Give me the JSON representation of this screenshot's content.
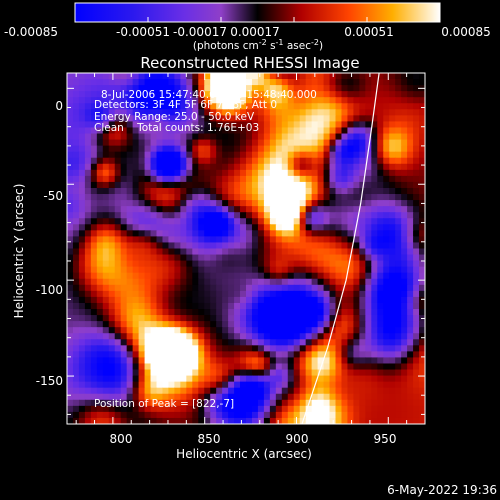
{
  "chart_data": {
    "type": "heatmap",
    "title": "Reconstructed RHESSI Image",
    "xlabel": "Heliocentric X (arcsec)",
    "ylabel": "Heliocentric Y (arcsec)",
    "xlim": [
      775,
      970
    ],
    "ylim": [
      -175,
      8
    ],
    "x_ticks": [
      800,
      850,
      900,
      950
    ],
    "y_ticks": [
      0,
      -50,
      -100,
      -150
    ],
    "colorbar": {
      "ticks": [
        "-0.00085",
        "-0.00051",
        "-0.00017",
        "0.00017",
        "0.00051",
        "0.00085"
      ],
      "label_main": "(photons cm",
      "label_exp1": "-2",
      "label_mid1": " s",
      "label_exp2": "-1",
      "label_mid2": " asec",
      "label_exp3": "-2",
      "label_end": ")",
      "range": [
        -0.00085,
        0.00085
      ]
    },
    "annotations": {
      "time": "8-Jul-2006 15:47:40.000 to 15:48:40.000",
      "detectors": "Detectors: 3F 4F 5F 6F 7F 8F, Att 0",
      "energy": "Energy Range: 25.0 - 50.0 keV",
      "clean": "Clean    Total counts: 1.76E+03",
      "peak": "Position of Peak = [822,-7]"
    },
    "limb_points": [
      [
        945,
        8
      ],
      [
        941,
        -20
      ],
      [
        935,
        -60
      ],
      [
        927,
        -100
      ],
      [
        917,
        -135
      ],
      [
        903,
        -175
      ]
    ],
    "colors": {
      "background": "#000000",
      "text": "#ffffff",
      "limb": "#ffffff"
    }
  },
  "footer": {
    "date": "6-May-2022 19:36"
  }
}
